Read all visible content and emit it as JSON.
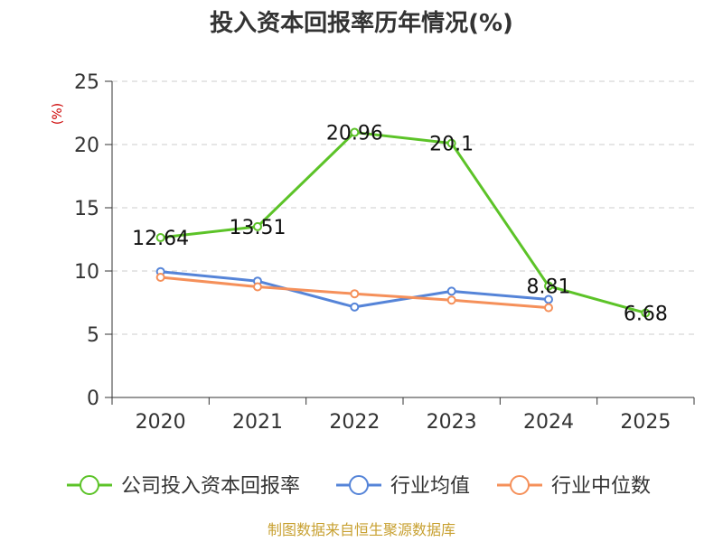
{
  "chart_data": {
    "type": "line",
    "title": "投入资本回报率历年情况(%)",
    "ylabel": "(%)",
    "xlabel": "",
    "categories": [
      "2020",
      "2021",
      "2022",
      "2023",
      "2024",
      "2025"
    ],
    "ylim": [
      0,
      25
    ],
    "yticks": [
      0,
      5,
      10,
      15,
      20,
      25
    ],
    "grid": true,
    "legend_position": "bottom",
    "series": [
      {
        "name": "公司投入资本回报率",
        "color": "#5cc328",
        "values": [
          12.64,
          13.51,
          20.96,
          20.1,
          8.81,
          6.68
        ],
        "labels": [
          "12.64",
          "13.51",
          "20.96",
          "20.1",
          "8.81",
          "6.68"
        ]
      },
      {
        "name": "行业均值",
        "color": "#5584d8",
        "values": [
          9.95,
          9.2,
          7.15,
          8.4,
          7.75,
          null
        ]
      },
      {
        "name": "行业中位数",
        "color": "#f5905a",
        "values": [
          9.5,
          8.75,
          8.2,
          7.7,
          7.1,
          null
        ]
      }
    ]
  },
  "colors": {
    "ylabel": "#cc0000",
    "source": "#c8a132",
    "axis": "#333333",
    "grid": "#cccccc"
  },
  "source_text": "制图数据来自恒生聚源数据库"
}
